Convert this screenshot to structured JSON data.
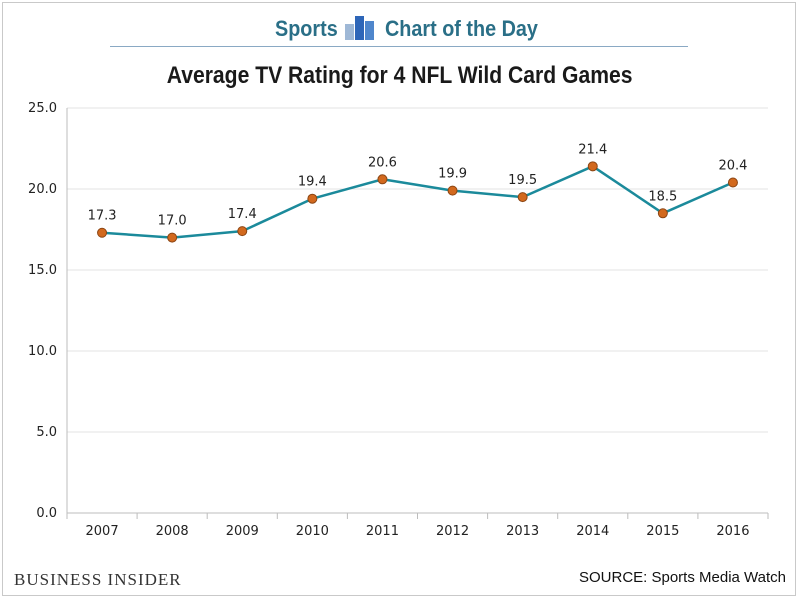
{
  "header": {
    "left_label": "Sports",
    "right_label": "Chart of the Day",
    "icon": "bar-chart-icon"
  },
  "footer": {
    "logo": "BUSINESS INSIDER",
    "source": "SOURCE: Sports Media Watch"
  },
  "colors": {
    "line": "#1b8a9b",
    "marker_fill": "#d2691e",
    "marker_stroke": "#8b4513",
    "accent": "#2a6f87",
    "grid": "#e3e3e3"
  },
  "chart_data": {
    "type": "line",
    "title": "Average TV Rating for 4 NFL Wild Card Games",
    "xlabel": "",
    "ylabel": "",
    "categories": [
      "2007",
      "2008",
      "2009",
      "2010",
      "2011",
      "2012",
      "2013",
      "2014",
      "2015",
      "2016"
    ],
    "series": [
      {
        "values": [
          17.3,
          17.0,
          17.4,
          19.4,
          20.6,
          19.9,
          19.5,
          21.4,
          18.5,
          20.4
        ],
        "labels": [
          "17.3",
          "17.0",
          "17.4",
          "19.4",
          "20.6",
          "19.9",
          "19.5",
          "21.4",
          "18.5",
          "20.4"
        ]
      }
    ],
    "ylim": [
      0,
      25
    ],
    "yticks": [
      "0.0",
      "5.0",
      "10.0",
      "15.0",
      "20.0",
      "25.0"
    ],
    "grid": true,
    "legend": "none"
  }
}
